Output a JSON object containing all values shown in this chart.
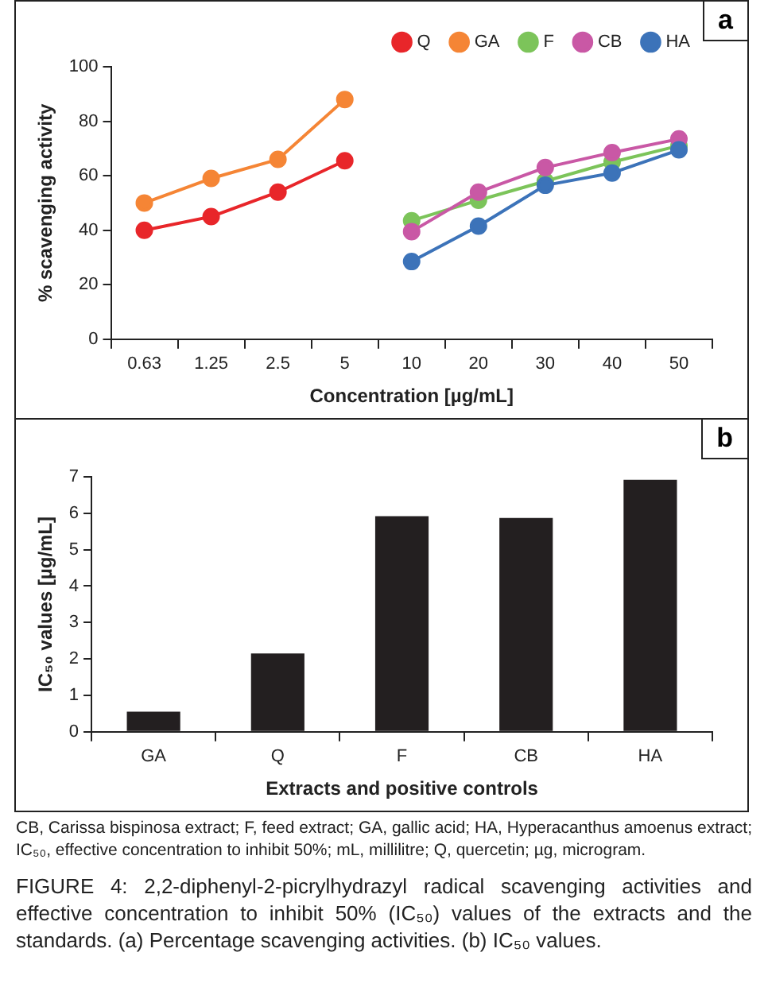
{
  "chart_data": [
    {
      "type": "line",
      "xlabel": "Concentration [µg/mL]",
      "ylabel": "% scavenging activity",
      "categories": [
        "0.63",
        "1.25",
        "2.5",
        "5",
        "10",
        "20",
        "30",
        "40",
        "50"
      ],
      "series": [
        {
          "name": "Q",
          "color": "#e8262a",
          "values": [
            40,
            45,
            54,
            65.5,
            null,
            null,
            null,
            null,
            null
          ]
        },
        {
          "name": "GA",
          "color": "#f58535",
          "values": [
            50,
            59,
            66,
            88,
            null,
            null,
            null,
            null,
            null
          ]
        },
        {
          "name": "F",
          "color": "#7cc45a",
          "values": [
            null,
            null,
            null,
            null,
            43.5,
            51,
            58,
            65,
            71
          ]
        },
        {
          "name": "CB",
          "color": "#c958a5",
          "values": [
            null,
            null,
            null,
            null,
            39.5,
            54,
            63,
            68.5,
            73.5
          ]
        },
        {
          "name": "HA",
          "color": "#3c73b9",
          "values": [
            null,
            null,
            null,
            null,
            28.5,
            41.5,
            56.5,
            61,
            69.5
          ]
        }
      ],
      "ylim": [
        0,
        100
      ],
      "yticks": [
        0,
        20,
        40,
        60,
        80,
        100
      ],
      "legend": "top right",
      "marker": "circle",
      "annotations": [
        "a"
      ]
    },
    {
      "type": "bar",
      "xlabel": "Extracts and positive controls",
      "ylabel": "IC₅₀ values [µg/mL]",
      "categories": [
        "GA",
        "Q",
        "F",
        "CB",
        "HA"
      ],
      "values": [
        0.55,
        2.15,
        5.92,
        5.87,
        6.92
      ],
      "color": "#231f20",
      "ylim": [
        0,
        7
      ],
      "yticks": [
        0,
        1,
        2,
        3,
        4,
        5,
        6,
        7
      ],
      "annotations": [
        "b",
        "CB, Carissa bispinosa extract; F, feed extract; GA, gallic acid; HA, Hyperacanthus amoenus extract; IC₅₀, effective concentration to inhibit 50%; mL, millilitre; Q, quercetin; µg, microgram.",
        "FIGURE 4: 2,2-diphenyl-2-picrylhydrazyl radical scavenging activities and effective concentration to inhibit 50% (IC₅₀) values of the extracts and the standards. (a) Percentage scavenging activities. (b) IC₅₀ values."
      ]
    }
  ]
}
